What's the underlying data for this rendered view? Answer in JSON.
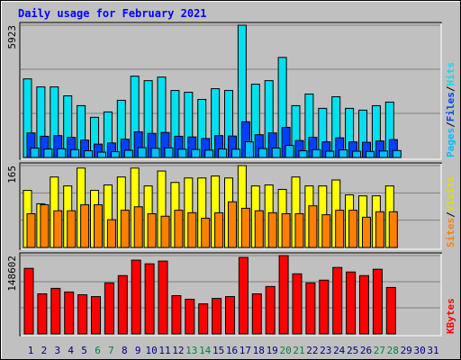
{
  "chart_data": [
    {
      "type": "bar",
      "title": "Daily usage for February 2021",
      "ylim": [
        0,
        5923
      ],
      "yticks": [
        5923
      ],
      "separator": "/",
      "series": [
        {
          "name": "Hits",
          "color": "#00e0f0",
          "values": [
            3520,
            3160,
            3160,
            2760,
            2320,
            1800,
            2040,
            2560,
            3640,
            3440,
            3600,
            3000,
            2920,
            2600,
            3080,
            3000,
            5923,
            3280,
            3440,
            4480,
            2320,
            2840,
            2200,
            2720,
            2200,
            2120,
            2320,
            2480,
            null,
            null,
            null
          ]
        },
        {
          "name": "Files",
          "color": "#0040ff",
          "values": [
            1100,
            950,
            980,
            900,
            780,
            600,
            650,
            820,
            1150,
            1080,
            1120,
            950,
            920,
            850,
            980,
            960,
            1600,
            1020,
            1100,
            1350,
            760,
            900,
            700,
            880,
            700,
            680,
            740,
            800,
            null,
            null,
            null
          ]
        },
        {
          "name": "Pages",
          "color": "#00c0ff",
          "values": [
            420,
            380,
            390,
            350,
            300,
            240,
            260,
            320,
            440,
            410,
            430,
            370,
            360,
            330,
            380,
            370,
            700,
            400,
            420,
            540,
            300,
            350,
            280,
            340,
            280,
            270,
            290,
            310,
            null,
            null,
            null
          ]
        }
      ]
    },
    {
      "type": "bar",
      "ylim": [
        0,
        165
      ],
      "yticks": [
        165
      ],
      "separator": "/",
      "series": [
        {
          "name": "Visits",
          "color": "#ffff00",
          "values": [
            115,
            88,
            142,
            124,
            160,
            115,
            126,
            142,
            160,
            124,
            154,
            131,
            140,
            140,
            144,
            140,
            165,
            124,
            126,
            117,
            142,
            124,
            124,
            136,
            106,
            104,
            104,
            124,
            null,
            null,
            null
          ]
        },
        {
          "name": "Sites",
          "color": "#ff8000",
          "values": [
            68,
            86,
            74,
            74,
            86,
            86,
            56,
            75,
            82,
            68,
            63,
            75,
            70,
            59,
            70,
            92,
            79,
            74,
            70,
            68,
            68,
            84,
            66,
            75,
            75,
            61,
            72,
            72,
            null,
            null,
            null
          ]
        }
      ]
    },
    {
      "type": "bar",
      "ylim": [
        0,
        148602
      ],
      "yticks": [
        148602
      ],
      "categories": [
        "1",
        "2",
        "3",
        "4",
        "5",
        "6",
        "7",
        "8",
        "9",
        "10",
        "11",
        "12",
        "13",
        "14",
        "15",
        "16",
        "17",
        "18",
        "19",
        "20",
        "21",
        "22",
        "23",
        "24",
        "25",
        "26",
        "27",
        "28",
        "29",
        "30",
        "31"
      ],
      "category_colors": [
        "#000080",
        "#000080",
        "#000080",
        "#000080",
        "#000080",
        "#008040",
        "#008040",
        "#000080",
        "#000080",
        "#000080",
        "#000080",
        "#000080",
        "#008040",
        "#008040",
        "#000080",
        "#000080",
        "#000080",
        "#000080",
        "#000080",
        "#008040",
        "#008040",
        "#000080",
        "#000080",
        "#000080",
        "#000080",
        "#000080",
        "#008040",
        "#008040",
        "#000080",
        "#000080",
        "#000080"
      ],
      "series": [
        {
          "name": "KBytes",
          "color": "#ff0000",
          "values": [
            124400,
            76000,
            86400,
            79500,
            74300,
            70800,
            96800,
            110600,
            140000,
            133000,
            138200,
            72600,
            65700,
            57000,
            67400,
            70800,
            145100,
            76000,
            89900,
            148602,
            114000,
            96800,
            102000,
            126100,
            117500,
            110600,
            122700,
            88100,
            null,
            null,
            null
          ]
        }
      ]
    }
  ]
}
